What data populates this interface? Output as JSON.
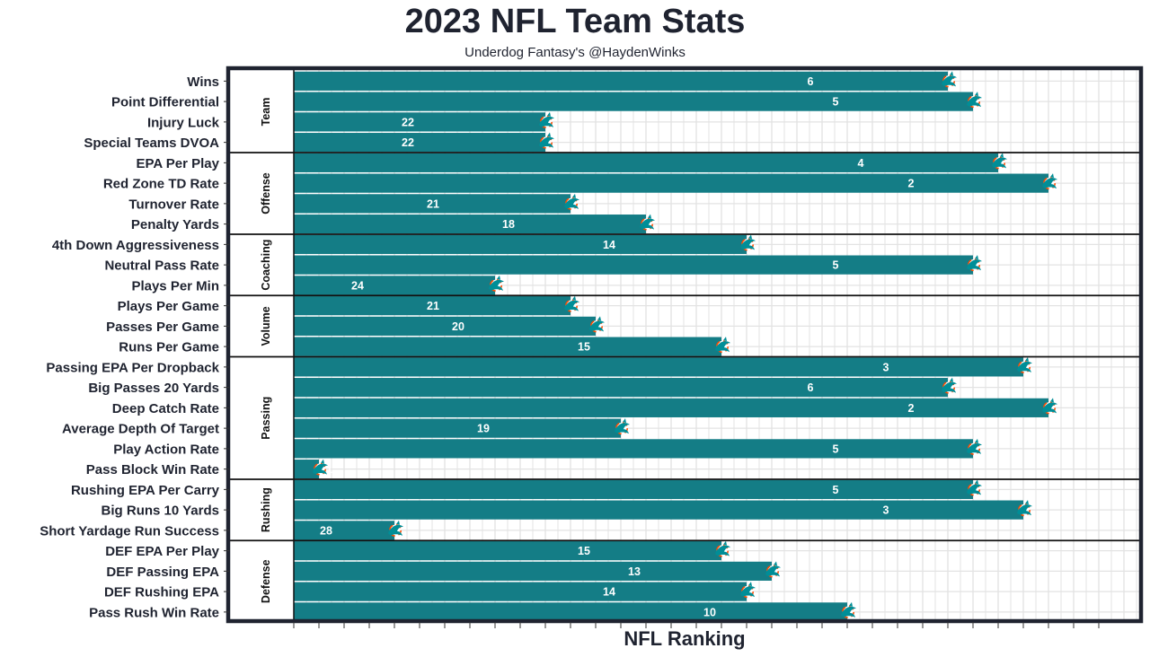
{
  "title": "2023 NFL Team Stats",
  "subtitle": "Underdog Fantasy's @HaydenWinks",
  "colors": {
    "bar": "#147d86",
    "frame": "#1f2330",
    "grid": "#e3e3e3",
    "team_logo": "#008e97",
    "logo_accent": "#fc4c02"
  },
  "chart_data": {
    "type": "bar",
    "orientation": "horizontal",
    "title": "2023 NFL Team Stats",
    "subtitle": "Underdog Fantasy's @HaydenWinks",
    "xlabel": "NFL Ranking",
    "ylabel": "",
    "team": "Miami Dolphins",
    "xlim": [
      32,
      1
    ],
    "grid": true,
    "groups": [
      {
        "name": "Team",
        "items": [
          {
            "label": "Wins",
            "rank": 6
          },
          {
            "label": "Point Differential",
            "rank": 5
          },
          {
            "label": "Injury Luck",
            "rank": 22
          },
          {
            "label": "Special Teams DVOA",
            "rank": 22
          }
        ]
      },
      {
        "name": "Offense",
        "items": [
          {
            "label": "EPA Per Play",
            "rank": 4
          },
          {
            "label": "Red Zone TD Rate",
            "rank": 2
          },
          {
            "label": "Turnover Rate",
            "rank": 21
          },
          {
            "label": "Penalty Yards",
            "rank": 18
          }
        ]
      },
      {
        "name": "Coaching",
        "items": [
          {
            "label": "4th Down Aggressiveness",
            "rank": 14
          },
          {
            "label": "Neutral Pass Rate",
            "rank": 5
          },
          {
            "label": "Plays Per Min",
            "rank": 24
          }
        ]
      },
      {
        "name": "Volume",
        "items": [
          {
            "label": "Plays Per Game",
            "rank": 21
          },
          {
            "label": "Passes Per Game",
            "rank": 20
          },
          {
            "label": "Runs Per Game",
            "rank": 15
          }
        ]
      },
      {
        "name": "Passing",
        "items": [
          {
            "label": "Passing EPA Per Dropback",
            "rank": 3
          },
          {
            "label": "Big Passes 20 Yards",
            "rank": 6
          },
          {
            "label": "Deep Catch Rate",
            "rank": 2
          },
          {
            "label": "Average Depth Of Target",
            "rank": 19
          },
          {
            "label": "Play Action Rate",
            "rank": 5
          },
          {
            "label": "Pass Block Win Rate",
            "rank": 31
          }
        ]
      },
      {
        "name": "Rushing",
        "items": [
          {
            "label": "Rushing EPA Per Carry",
            "rank": 5
          },
          {
            "label": "Big Runs 10 Yards",
            "rank": 3
          },
          {
            "label": "Short Yardage Run Success",
            "rank": 28
          }
        ]
      },
      {
        "name": "Defense",
        "items": [
          {
            "label": "DEF EPA Per Play",
            "rank": 15
          },
          {
            "label": "DEF Passing EPA",
            "rank": 13
          },
          {
            "label": "DEF Rushing EPA",
            "rank": 14
          },
          {
            "label": "Pass Rush Win Rate",
            "rank": 10
          }
        ]
      }
    ]
  }
}
